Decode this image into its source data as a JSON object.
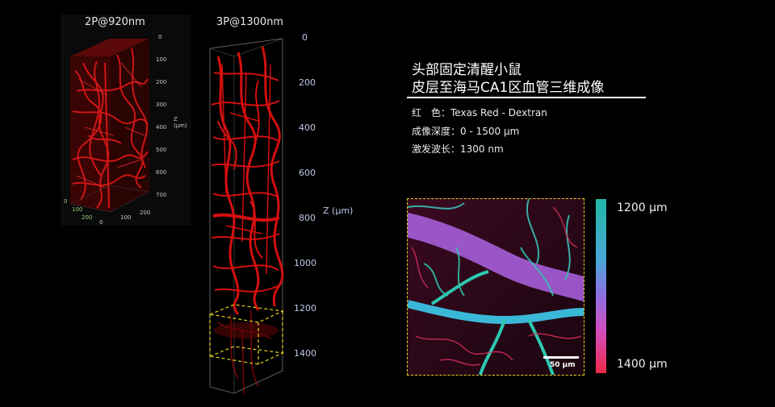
{
  "panel_2p": {
    "title": "2P@920nm",
    "z_ticks": [
      "0",
      "100",
      "200",
      "300",
      "400",
      "500",
      "600",
      "700"
    ],
    "z_label": "Z (μm)",
    "base_ticks": [
      "0",
      "100",
      "200",
      "0",
      "100",
      "200"
    ]
  },
  "panel_3p": {
    "title": "3P@1300nm",
    "z_ticks": [
      "0",
      "200",
      "400",
      "600",
      "800",
      "1000",
      "1200",
      "1400"
    ],
    "z_label": "Z (μm)"
  },
  "info": {
    "heading_line1": "头部固定清醒小鼠",
    "heading_line2": "皮层至海马CA1区血管三维成像",
    "row1": "红　色：Texas Red - Dextran",
    "row2": "成像深度：0 - 1500 μm",
    "row3": "激发波长：1300 nm"
  },
  "inset": {
    "scale_bar": "50 μm",
    "colorbar_top": "1200 μm",
    "colorbar_bottom": "1400 μm"
  },
  "colors": {
    "vessel_red": "#e01010",
    "box_dash": "#e8d21a",
    "colorbar": [
      "#1fb8a6",
      "#4aa6d8",
      "#8c6fe0",
      "#d04ec0",
      "#ee2a4a"
    ]
  }
}
